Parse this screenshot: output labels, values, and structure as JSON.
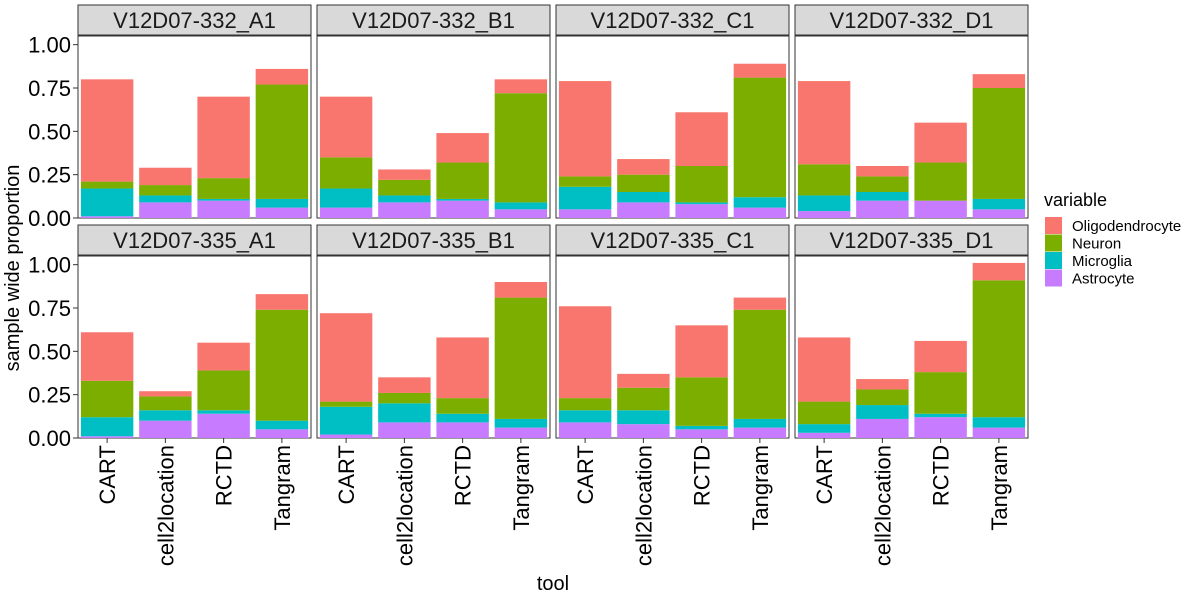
{
  "chart_data": {
    "type": "bar",
    "stacked": true,
    "faceted": true,
    "facet_grid": {
      "rows": 2,
      "cols": 4
    },
    "xlabel": "tool",
    "ylabel": "sample wide proportion",
    "ylim": [
      0,
      1.05
    ],
    "yticks": [
      0.0,
      0.25,
      0.5,
      0.75,
      1.0
    ],
    "ytick_labels": [
      "0.00",
      "0.25",
      "0.50",
      "0.75",
      "1.00"
    ],
    "categories": [
      "CART",
      "cell2location",
      "RCTD",
      "Tangram"
    ],
    "legend": {
      "title": "variable",
      "position": "right",
      "entries": [
        "Oligodendrocyte",
        "Neuron",
        "Microglia",
        "Astrocyte"
      ]
    },
    "series_order_bottom_to_top": [
      "Astrocyte",
      "Microglia",
      "Neuron",
      "Oligodendrocyte"
    ],
    "colors": {
      "Oligodendrocyte": "#F8766D",
      "Neuron": "#7CAE00",
      "Microglia": "#00BFC4",
      "Astrocyte": "#C77CFF"
    },
    "panels": [
      {
        "title": "V12D07-332_A1",
        "values": {
          "CART": {
            "Astrocyte": 0.01,
            "Microglia": 0.16,
            "Neuron": 0.04,
            "Oligodendrocyte": 0.59
          },
          "cell2location": {
            "Astrocyte": 0.09,
            "Microglia": 0.04,
            "Neuron": 0.06,
            "Oligodendrocyte": 0.1
          },
          "RCTD": {
            "Astrocyte": 0.1,
            "Microglia": 0.01,
            "Neuron": 0.12,
            "Oligodendrocyte": 0.47
          },
          "Tangram": {
            "Astrocyte": 0.06,
            "Microglia": 0.05,
            "Neuron": 0.66,
            "Oligodendrocyte": 0.09
          }
        }
      },
      {
        "title": "V12D07-332_B1",
        "values": {
          "CART": {
            "Astrocyte": 0.06,
            "Microglia": 0.11,
            "Neuron": 0.18,
            "Oligodendrocyte": 0.35
          },
          "cell2location": {
            "Astrocyte": 0.09,
            "Microglia": 0.04,
            "Neuron": 0.09,
            "Oligodendrocyte": 0.06
          },
          "RCTD": {
            "Astrocyte": 0.1,
            "Microglia": 0.01,
            "Neuron": 0.21,
            "Oligodendrocyte": 0.17
          },
          "Tangram": {
            "Astrocyte": 0.05,
            "Microglia": 0.04,
            "Neuron": 0.63,
            "Oligodendrocyte": 0.08
          }
        }
      },
      {
        "title": "V12D07-332_C1",
        "values": {
          "CART": {
            "Astrocyte": 0.05,
            "Microglia": 0.13,
            "Neuron": 0.06,
            "Oligodendrocyte": 0.55
          },
          "cell2location": {
            "Astrocyte": 0.09,
            "Microglia": 0.06,
            "Neuron": 0.1,
            "Oligodendrocyte": 0.09
          },
          "RCTD": {
            "Astrocyte": 0.08,
            "Microglia": 0.01,
            "Neuron": 0.21,
            "Oligodendrocyte": 0.31
          },
          "Tangram": {
            "Astrocyte": 0.06,
            "Microglia": 0.06,
            "Neuron": 0.69,
            "Oligodendrocyte": 0.08
          }
        }
      },
      {
        "title": "V12D07-332_D1",
        "values": {
          "CART": {
            "Astrocyte": 0.04,
            "Microglia": 0.09,
            "Neuron": 0.18,
            "Oligodendrocyte": 0.48
          },
          "cell2location": {
            "Astrocyte": 0.1,
            "Microglia": 0.05,
            "Neuron": 0.09,
            "Oligodendrocyte": 0.06
          },
          "RCTD": {
            "Astrocyte": 0.1,
            "Microglia": 0.0,
            "Neuron": 0.22,
            "Oligodendrocyte": 0.23
          },
          "Tangram": {
            "Astrocyte": 0.05,
            "Microglia": 0.06,
            "Neuron": 0.64,
            "Oligodendrocyte": 0.08
          }
        }
      },
      {
        "title": "V12D07-335_A1",
        "values": {
          "CART": {
            "Astrocyte": 0.01,
            "Microglia": 0.11,
            "Neuron": 0.21,
            "Oligodendrocyte": 0.28
          },
          "cell2location": {
            "Astrocyte": 0.1,
            "Microglia": 0.06,
            "Neuron": 0.08,
            "Oligodendrocyte": 0.03
          },
          "RCTD": {
            "Astrocyte": 0.14,
            "Microglia": 0.02,
            "Neuron": 0.23,
            "Oligodendrocyte": 0.16
          },
          "Tangram": {
            "Astrocyte": 0.05,
            "Microglia": 0.05,
            "Neuron": 0.64,
            "Oligodendrocyte": 0.09
          }
        }
      },
      {
        "title": "V12D07-335_B1",
        "values": {
          "CART": {
            "Astrocyte": 0.02,
            "Microglia": 0.16,
            "Neuron": 0.03,
            "Oligodendrocyte": 0.51
          },
          "cell2location": {
            "Astrocyte": 0.09,
            "Microglia": 0.11,
            "Neuron": 0.06,
            "Oligodendrocyte": 0.09
          },
          "RCTD": {
            "Astrocyte": 0.09,
            "Microglia": 0.05,
            "Neuron": 0.09,
            "Oligodendrocyte": 0.35
          },
          "Tangram": {
            "Astrocyte": 0.06,
            "Microglia": 0.05,
            "Neuron": 0.7,
            "Oligodendrocyte": 0.09
          }
        }
      },
      {
        "title": "V12D07-335_C1",
        "values": {
          "CART": {
            "Astrocyte": 0.09,
            "Microglia": 0.07,
            "Neuron": 0.07,
            "Oligodendrocyte": 0.53
          },
          "cell2location": {
            "Astrocyte": 0.08,
            "Microglia": 0.08,
            "Neuron": 0.13,
            "Oligodendrocyte": 0.08
          },
          "RCTD": {
            "Astrocyte": 0.05,
            "Microglia": 0.02,
            "Neuron": 0.28,
            "Oligodendrocyte": 0.3
          },
          "Tangram": {
            "Astrocyte": 0.06,
            "Microglia": 0.05,
            "Neuron": 0.63,
            "Oligodendrocyte": 0.07
          }
        }
      },
      {
        "title": "V12D07-335_D1",
        "values": {
          "CART": {
            "Astrocyte": 0.03,
            "Microglia": 0.05,
            "Neuron": 0.13,
            "Oligodendrocyte": 0.37
          },
          "cell2location": {
            "Astrocyte": 0.11,
            "Microglia": 0.08,
            "Neuron": 0.09,
            "Oligodendrocyte": 0.06
          },
          "RCTD": {
            "Astrocyte": 0.12,
            "Microglia": 0.02,
            "Neuron": 0.24,
            "Oligodendrocyte": 0.18
          },
          "Tangram": {
            "Astrocyte": 0.06,
            "Microglia": 0.06,
            "Neuron": 0.79,
            "Oligodendrocyte": 0.1
          }
        }
      }
    ]
  }
}
